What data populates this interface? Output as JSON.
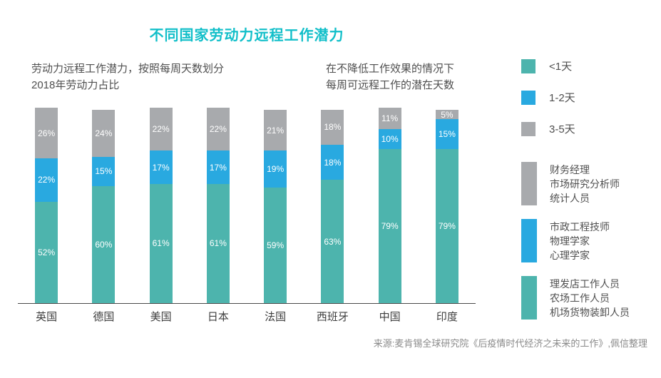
{
  "title": "不同国家劳动力远程工作潜力",
  "subtitle_left": {
    "lines": [
      "劳动力远程工作潜力，按照每周天数划分",
      "2018年劳动力占比"
    ]
  },
  "subtitle_right": {
    "lines": [
      "在不降低工作效果的情况下",
      "每周可远程工作的潜在天数"
    ]
  },
  "source": "来源:麦肯锡全球研究院《后疫情时代经济之未来的工作》,佩信整理",
  "colors": {
    "teal": "#4db4ad",
    "blue": "#29a9e0",
    "gray": "#a8aaad",
    "title_accent": "#12bfc9",
    "axis": "#4a4a4a",
    "body_text": "#4f4f4f",
    "segment_label": "#ffffff",
    "source_text": "#8a8a8a"
  },
  "chart_data": {
    "type": "bar",
    "stacked": true,
    "categories": [
      "英国",
      "德国",
      "美国",
      "日本",
      "法国",
      "西班牙",
      "中国",
      "印度"
    ],
    "series": [
      {
        "name": "<1天",
        "color_key": "teal",
        "values": [
          52,
          60,
          61,
          61,
          59,
          63,
          79,
          79
        ]
      },
      {
        "name": "1-2天",
        "color_key": "blue",
        "values": [
          22,
          15,
          17,
          17,
          19,
          18,
          10,
          15
        ]
      },
      {
        "name": "3-5天",
        "color_key": "gray",
        "values": [
          26,
          24,
          22,
          22,
          21,
          18,
          11,
          5
        ]
      }
    ],
    "value_suffix": "%",
    "ylim": [
      0,
      100
    ],
    "grid": false,
    "legend_position": "right"
  },
  "legend_days": {
    "items": [
      {
        "label": "<1天",
        "color_key": "teal"
      },
      {
        "label": "1-2天",
        "color_key": "blue"
      },
      {
        "label": "3-5天",
        "color_key": "gray"
      }
    ]
  },
  "legend_occupations": {
    "items": [
      {
        "color_key": "gray",
        "lines": [
          "财务经理",
          "市场研究分析师",
          "统计人员"
        ]
      },
      {
        "color_key": "blue",
        "lines": [
          "市政工程技师",
          "物理学家",
          "心理学家"
        ]
      },
      {
        "color_key": "teal",
        "lines": [
          "理发店工作人员",
          "农场工作人员",
          "机场货物装卸人员"
        ]
      }
    ]
  }
}
